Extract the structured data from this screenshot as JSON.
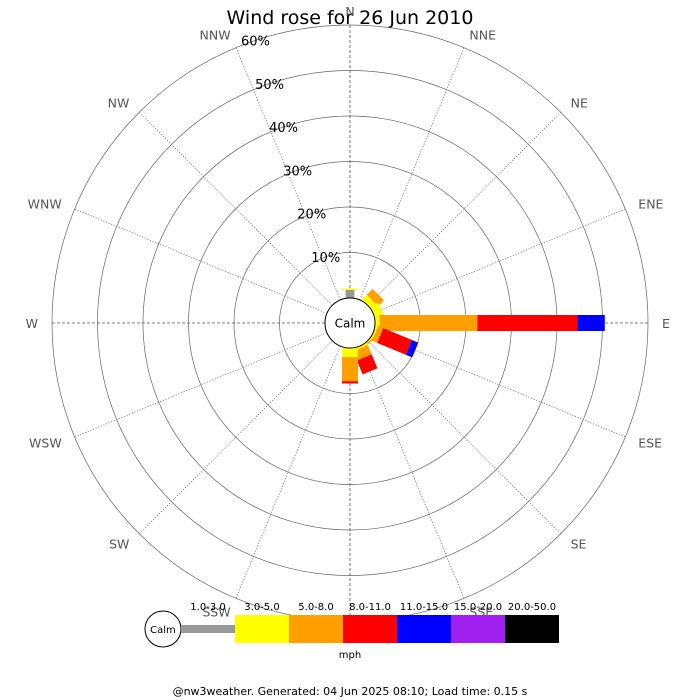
{
  "chart_data": {
    "type": "windrose",
    "title": "Wind rose for 26 Jun 2010",
    "directions": [
      "N",
      "NNE",
      "NE",
      "ENE",
      "E",
      "ESE",
      "SE",
      "SSE",
      "S",
      "SSW",
      "SW",
      "WSW",
      "W",
      "WNW",
      "NW",
      "NNW"
    ],
    "radial_ticks": [
      10,
      20,
      30,
      40,
      50,
      60
    ],
    "radial_tick_labels": [
      "10%",
      "20%",
      "30%",
      "40%",
      "50%",
      "60%"
    ],
    "rmax": 60,
    "calm_label": "Calm",
    "units_label": "mph",
    "bins": [
      {
        "label": "1.0-3.0",
        "color": "#999999"
      },
      {
        "label": "3.0-5.0",
        "color": "#ffff00"
      },
      {
        "label": "5.0-8.0",
        "color": "#ffa000"
      },
      {
        "label": "8.0-11.0",
        "color": "#ff0000"
      },
      {
        "label": "11.0-15.0",
        "color": "#0000ff"
      },
      {
        "label": "15.0-20.0",
        "color": "#a020f0"
      },
      {
        "label": "20.0-50.0",
        "color": "#000000"
      }
    ],
    "data": [
      {
        "direction": "N",
        "values": [
          1.8,
          0.3,
          0,
          0,
          0,
          0,
          0
        ]
      },
      {
        "direction": "NNE",
        "values": [
          0,
          0,
          0,
          0,
          0,
          0,
          0
        ]
      },
      {
        "direction": "NE",
        "values": [
          0,
          1.5,
          1.8,
          0,
          0,
          0,
          0
        ]
      },
      {
        "direction": "ENE",
        "values": [
          0,
          2.0,
          0,
          0,
          0,
          0,
          0
        ]
      },
      {
        "direction": "E",
        "values": [
          0,
          1.0,
          21.5,
          22.0,
          6.0,
          0,
          0
        ]
      },
      {
        "direction": "ESE",
        "values": [
          0,
          0.5,
          1.2,
          6.8,
          1.5,
          0,
          0
        ]
      },
      {
        "direction": "SE",
        "values": [
          0,
          0.3,
          0.3,
          0,
          0,
          0,
          0
        ]
      },
      {
        "direction": "SSE",
        "values": [
          0,
          0.5,
          2.2,
          3.3,
          0,
          0,
          0
        ]
      },
      {
        "direction": "S",
        "values": [
          0,
          2.0,
          5.3,
          0.5,
          0,
          0,
          0
        ]
      },
      {
        "direction": "SSW",
        "values": [
          0,
          0,
          0,
          0,
          0,
          0,
          0
        ]
      },
      {
        "direction": "SW",
        "values": [
          0,
          0,
          0,
          0,
          0,
          0,
          0
        ]
      },
      {
        "direction": "WSW",
        "values": [
          0,
          0,
          0,
          0,
          0,
          0,
          0
        ]
      },
      {
        "direction": "W",
        "values": [
          0,
          0,
          0,
          0,
          0,
          0,
          0
        ]
      },
      {
        "direction": "WNW",
        "values": [
          0,
          0,
          0,
          0,
          0,
          0,
          0
        ]
      },
      {
        "direction": "NW",
        "values": [
          0,
          0,
          0,
          0,
          0,
          0,
          0
        ]
      },
      {
        "direction": "NNW",
        "values": [
          0,
          0,
          0,
          0,
          0,
          0,
          0
        ]
      }
    ]
  },
  "footer": {
    "text": "@nw3weather. Generated: 04 Jun 2025 08:10; Load time: 0.15 s"
  }
}
